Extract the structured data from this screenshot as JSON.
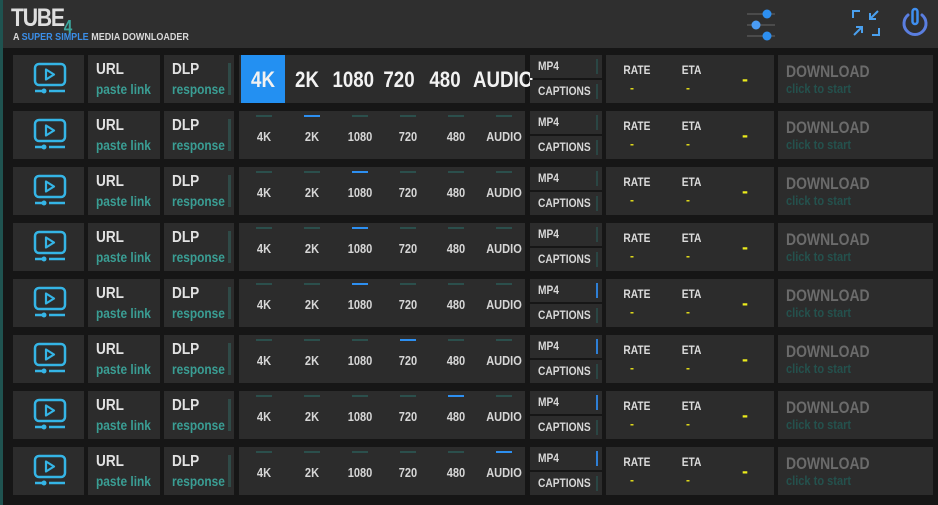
{
  "header": {
    "title": "TUBE",
    "title_suffix": "4",
    "tagline_prefix": "A",
    "tagline_highlight": "SUPER SIMPLE",
    "tagline_rest": "MEDIA DOWNLOADER",
    "icons": [
      "sliders-icon",
      "minimize-icon",
      "power-icon"
    ]
  },
  "colors": {
    "accent": "#2390f2",
    "teal": "#3a9e94",
    "value": "#e6e01a"
  },
  "quality_options": [
    "4K",
    "2K",
    "1080",
    "720",
    "480",
    "AUDIO"
  ],
  "rows": [
    {
      "url": "URL",
      "url_hint": "paste link",
      "dlp": "DLP",
      "dlp_hint": "response",
      "selected_quality": "4K",
      "expanded": true,
      "mp4": "MP4",
      "mp4_on": false,
      "captions": "CAPTIONS",
      "captions_on": false,
      "rate_label": "RATE",
      "rate": "-",
      "eta_label": "ETA",
      "eta": "-",
      "progress": "-",
      "download": "DOWNLOAD",
      "download_hint": "click to start"
    },
    {
      "url": "URL",
      "url_hint": "paste link",
      "dlp": "DLP",
      "dlp_hint": "response",
      "selected_quality": "2K",
      "expanded": false,
      "mp4": "MP4",
      "mp4_on": false,
      "captions": "CAPTIONS",
      "captions_on": false,
      "rate_label": "RATE",
      "rate": "-",
      "eta_label": "ETA",
      "eta": "-",
      "progress": "-",
      "download": "DOWNLOAD",
      "download_hint": "click to start"
    },
    {
      "url": "URL",
      "url_hint": "paste link",
      "dlp": "DLP",
      "dlp_hint": "response",
      "selected_quality": "1080",
      "expanded": false,
      "mp4": "MP4",
      "mp4_on": false,
      "captions": "CAPTIONS",
      "captions_on": false,
      "rate_label": "RATE",
      "rate": "-",
      "eta_label": "ETA",
      "eta": "-",
      "progress": "-",
      "download": "DOWNLOAD",
      "download_hint": "click to start"
    },
    {
      "url": "URL",
      "url_hint": "paste link",
      "dlp": "DLP",
      "dlp_hint": "response",
      "selected_quality": "1080",
      "expanded": false,
      "mp4": "MP4",
      "mp4_on": false,
      "captions": "CAPTIONS",
      "captions_on": false,
      "rate_label": "RATE",
      "rate": "-",
      "eta_label": "ETA",
      "eta": "-",
      "progress": "-",
      "download": "DOWNLOAD",
      "download_hint": "click to start"
    },
    {
      "url": "URL",
      "url_hint": "paste link",
      "dlp": "DLP",
      "dlp_hint": "response",
      "selected_quality": "1080",
      "expanded": false,
      "mp4": "MP4",
      "mp4_on": true,
      "captions": "CAPTIONS",
      "captions_on": false,
      "rate_label": "RATE",
      "rate": "-",
      "eta_label": "ETA",
      "eta": "-",
      "progress": "-",
      "download": "DOWNLOAD",
      "download_hint": "click to start"
    },
    {
      "url": "URL",
      "url_hint": "paste link",
      "dlp": "DLP",
      "dlp_hint": "response",
      "selected_quality": "720",
      "expanded": false,
      "mp4": "MP4",
      "mp4_on": true,
      "captions": "CAPTIONS",
      "captions_on": false,
      "rate_label": "RATE",
      "rate": "-",
      "eta_label": "ETA",
      "eta": "-",
      "progress": "-",
      "download": "DOWNLOAD",
      "download_hint": "click to start"
    },
    {
      "url": "URL",
      "url_hint": "paste link",
      "dlp": "DLP",
      "dlp_hint": "response",
      "selected_quality": "480",
      "expanded": false,
      "mp4": "MP4",
      "mp4_on": true,
      "captions": "CAPTIONS",
      "captions_on": false,
      "rate_label": "RATE",
      "rate": "-",
      "eta_label": "ETA",
      "eta": "-",
      "progress": "-",
      "download": "DOWNLOAD",
      "download_hint": "click to start"
    },
    {
      "url": "URL",
      "url_hint": "paste link",
      "dlp": "DLP",
      "dlp_hint": "response",
      "selected_quality": "AUDIO",
      "expanded": false,
      "mp4": "MP4",
      "mp4_on": true,
      "captions": "CAPTIONS",
      "captions_on": false,
      "rate_label": "RATE",
      "rate": "-",
      "eta_label": "ETA",
      "eta": "-",
      "progress": "-",
      "download": "DOWNLOAD",
      "download_hint": "click to start"
    }
  ]
}
